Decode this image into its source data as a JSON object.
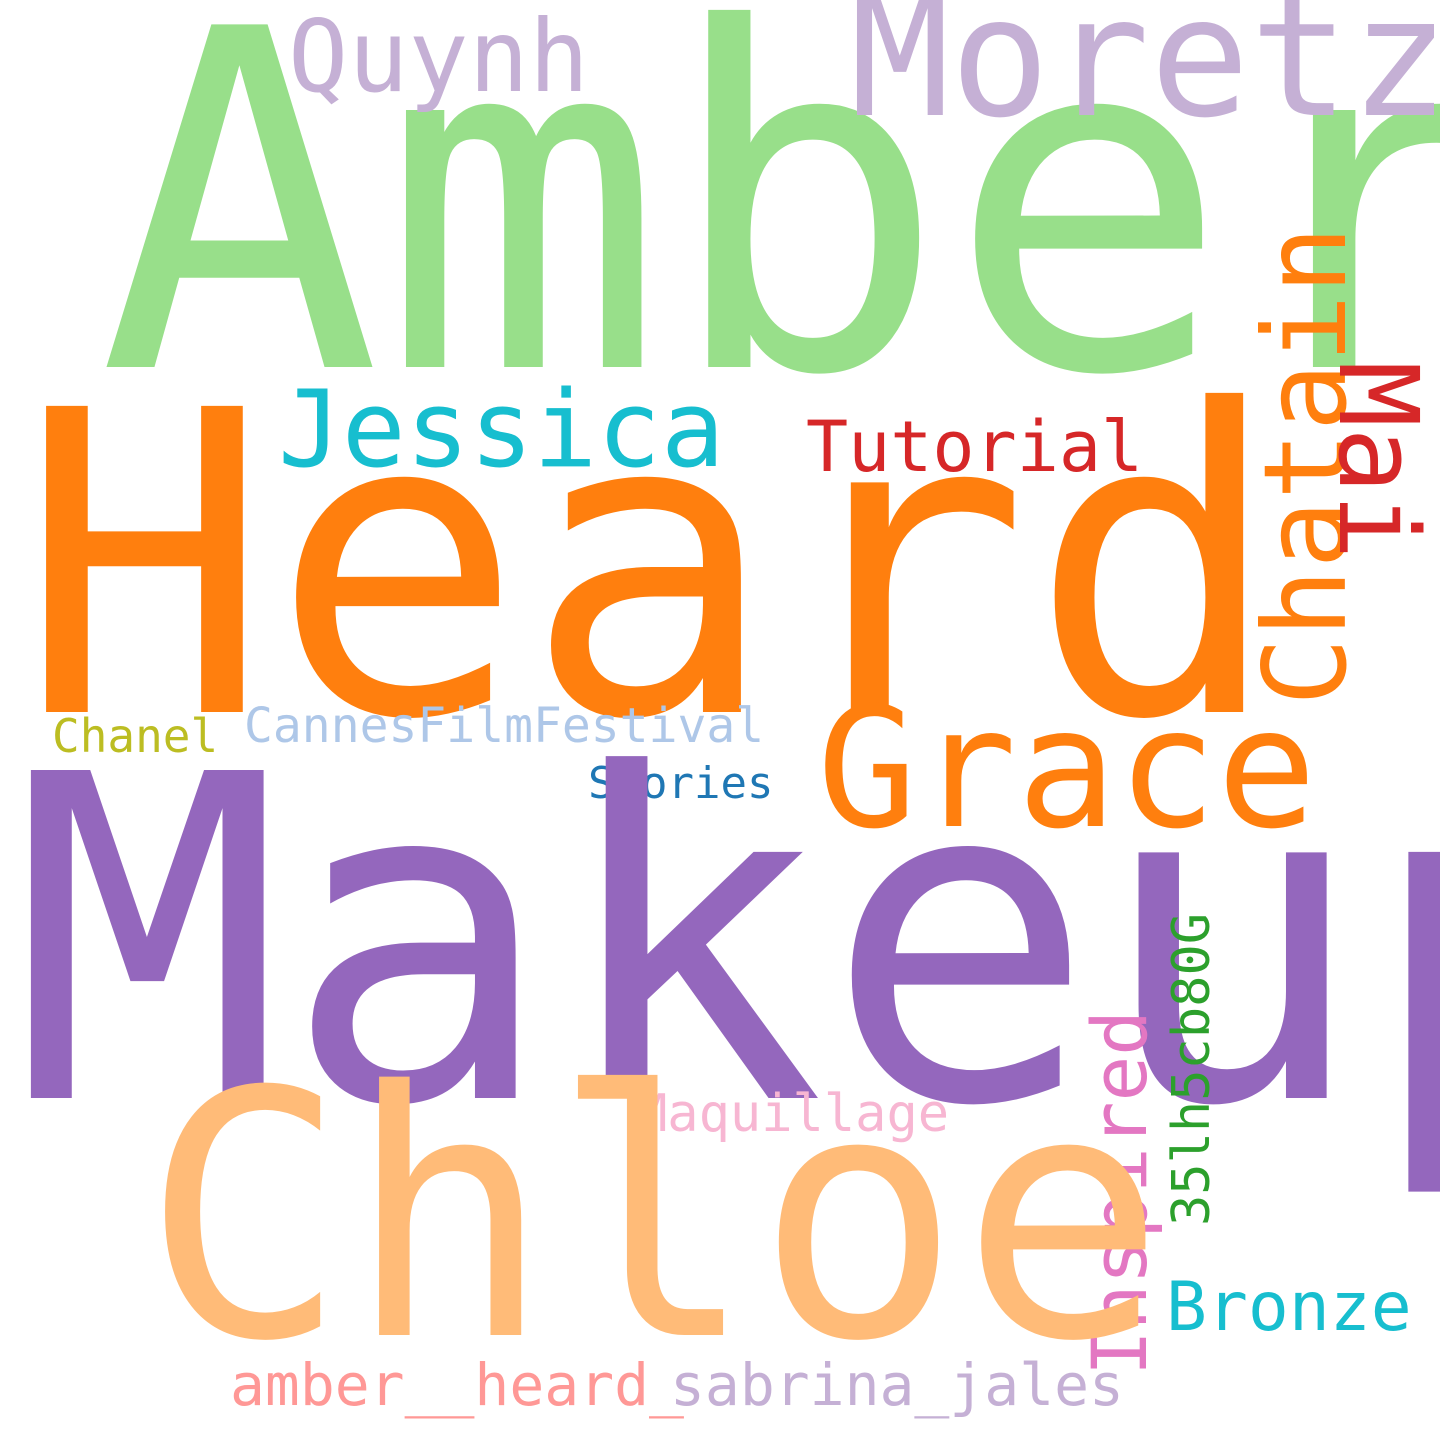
{
  "words": {
    "amber": {
      "text": "Amber",
      "color": "#98df8a"
    },
    "heard": {
      "text": "Heard",
      "color": "#ff7f0e"
    },
    "makeup": {
      "text": "Makeup",
      "color": "#9467bd"
    },
    "chloe": {
      "text": "Chloe",
      "color": "#ffbb78"
    },
    "moretz": {
      "text": "Moretz",
      "color": "#c5b0d5"
    },
    "quynh": {
      "text": "Quynh",
      "color": "#c5b0d5"
    },
    "jessica": {
      "text": "Jessica",
      "color": "#17becf"
    },
    "grace": {
      "text": "Grace",
      "color": "#ff7f0e"
    },
    "chatain": {
      "text": "Chatain",
      "color": "#ff7f0e"
    },
    "mai": {
      "text": "Mai",
      "color": "#d62728"
    },
    "tutorial": {
      "text": "Tutorial",
      "color": "#d62728"
    },
    "chanel": {
      "text": "Chanel",
      "color": "#bcbd22"
    },
    "cannes": {
      "text": "CannesFilmFestival",
      "color": "#aec7e8"
    },
    "stories": {
      "text": "Stories",
      "color": "#1f77b4"
    },
    "code": {
      "text": "35lh5cb80G",
      "color": "#2ca02c"
    },
    "maquillage": {
      "text": "Maquillage",
      "color": "#f7b6d2"
    },
    "inspired": {
      "text": "Inspired",
      "color": "#e377c2"
    },
    "bronze": {
      "text": "Bronze",
      "color": "#17becf"
    },
    "amber_heard": {
      "text": "amber__heard_",
      "color": "#ff9896"
    },
    "sabrina": {
      "text": "sabrina_jales",
      "color": "#c5b0d5"
    }
  }
}
